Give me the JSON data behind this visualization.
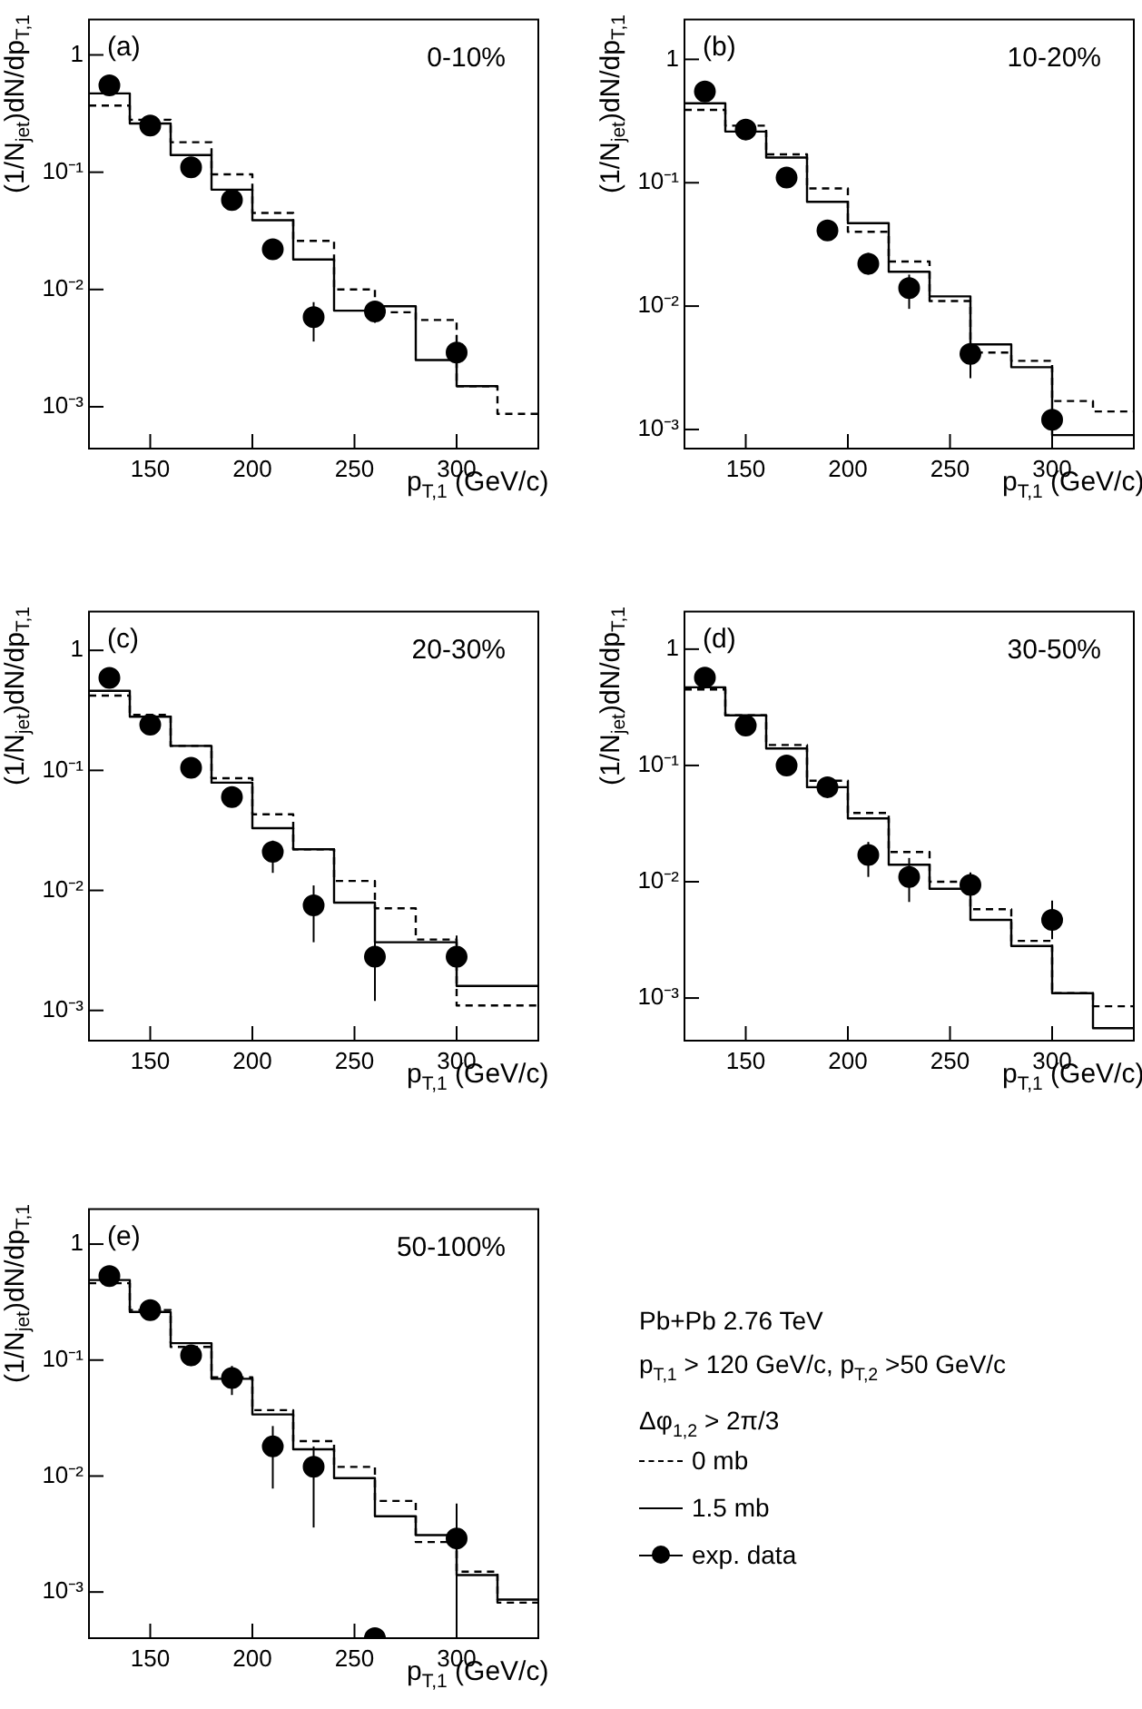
{
  "chart_data": [
    {
      "type": "step",
      "title": "(a)",
      "subtitle": "0-10%",
      "xlabel": "p$_{T,1}$ (GeV/c)",
      "ylabel": "(1/N$_{jet}$)dN/dp$_{T,1}$",
      "log": "y",
      "xlim": [
        120,
        340
      ],
      "xticks": [
        150,
        200,
        250,
        300
      ],
      "ylim": [
        0.00044,
        2
      ],
      "yticks": [
        {
          "value": 0.001,
          "label": "10⁻³"
        },
        {
          "value": 0.01,
          "label": "10⁻²"
        },
        {
          "value": 0.1,
          "label": "10⁻¹"
        },
        {
          "value": 1,
          "label": "1"
        }
      ],
      "series": [
        {
          "color": "#000000",
          "line_style": "dashed",
          "x": [
            120,
            140,
            160,
            180,
            200,
            220,
            240,
            260,
            280,
            300,
            320,
            340
          ],
          "values": [
            0.37,
            0.28,
            0.18,
            0.096,
            0.045,
            0.026,
            0.01,
            0.0064,
            0.0055,
            0.0015,
            0.00087,
            0.00087
          ]
        },
        {
          "color": "#000000",
          "line_style": "solid",
          "x": [
            120,
            140,
            160,
            180,
            200,
            220,
            240,
            260,
            280,
            300,
            320
          ],
          "values": [
            0.47,
            0.26,
            0.14,
            0.071,
            0.039,
            0.018,
            0.0066,
            0.0072,
            0.0025,
            0.0015,
            0.0015
          ]
        },
        {
          "type": "scatter",
          "color": "#000000",
          "marker": "circle",
          "x": [
            130,
            150,
            170,
            190,
            210,
            230,
            260,
            300
          ],
          "values": [
            0.55,
            0.25,
            0.11,
            0.058,
            0.022,
            0.0058,
            0.0065,
            0.0029
          ],
          "errors": [
            null,
            null,
            null,
            null,
            [
              0.019,
              0.026
            ],
            [
              0.0036,
              0.0078
            ],
            [
              0.0052,
              0.0078
            ],
            [
              0.002,
              0.0041
            ]
          ]
        }
      ]
    },
    {
      "type": "step",
      "title": "(b)",
      "subtitle": "10-20%",
      "xlabel": "p$_{T,1}$ (GeV/c)",
      "ylabel": "(1/N$_{jet}$)dN/dp$_{T,1}$",
      "log": "y",
      "xlim": [
        120,
        340
      ],
      "xticks": [
        150,
        200,
        250,
        300
      ],
      "ylim": [
        0.0007,
        2.1
      ],
      "yticks": [
        {
          "value": 0.001,
          "label": "10⁻³"
        },
        {
          "value": 0.01,
          "label": "10⁻²"
        },
        {
          "value": 0.1,
          "label": "10⁻¹"
        },
        {
          "value": 1,
          "label": "1"
        }
      ],
      "series": [
        {
          "color": "#000000",
          "line_style": "dashed",
          "x": [
            120,
            140,
            160,
            180,
            200,
            220,
            240,
            260,
            280,
            300,
            320,
            340
          ],
          "values": [
            0.39,
            0.29,
            0.17,
            0.09,
            0.04,
            0.023,
            0.011,
            0.0042,
            0.0036,
            0.0017,
            0.0014,
            0.0014
          ]
        },
        {
          "color": "#000000",
          "line_style": "solid",
          "x": [
            120,
            140,
            160,
            180,
            200,
            220,
            240,
            260,
            280,
            300,
            320,
            340
          ],
          "values": [
            0.44,
            0.26,
            0.16,
            0.07,
            0.047,
            0.019,
            0.012,
            0.0049,
            0.0032,
            0.0009,
            0.0009,
            0.0009
          ]
        },
        {
          "type": "scatter",
          "color": "#000000",
          "marker": "circle",
          "x": [
            130,
            150,
            170,
            190,
            210,
            230,
            260,
            300
          ],
          "values": [
            0.55,
            0.27,
            0.11,
            0.041,
            0.022,
            0.014,
            0.0041,
            0.0012
          ],
          "errors": [
            null,
            null,
            null,
            null,
            [
              0.018,
              0.027
            ],
            [
              0.0095,
              0.018
            ],
            [
              0.0026,
              0.0053
            ],
            null
          ]
        }
      ]
    },
    {
      "type": "step",
      "title": "(c)",
      "subtitle": "20-30%",
      "xlabel": "p$_{T,1}$ (GeV/c)",
      "ylabel": "(1/N$_{jet}$)dN/dp$_{T,1}$",
      "log": "y",
      "xlim": [
        120,
        340
      ],
      "xticks": [
        150,
        200,
        250,
        300
      ],
      "ylim": [
        0.00056,
        2.1
      ],
      "yticks": [
        {
          "value": 0.001,
          "label": "10⁻³"
        },
        {
          "value": 0.01,
          "label": "10⁻²"
        },
        {
          "value": 0.1,
          "label": "10⁻¹"
        },
        {
          "value": 1,
          "label": "1"
        }
      ],
      "series": [
        {
          "color": "#000000",
          "line_style": "dashed",
          "x": [
            120,
            140,
            160,
            180,
            200,
            220,
            240,
            260,
            280,
            300,
            320,
            340
          ],
          "values": [
            0.42,
            0.29,
            0.16,
            0.086,
            0.043,
            0.022,
            0.012,
            0.0071,
            0.0039,
            0.0011,
            0.0011,
            0.0011
          ]
        },
        {
          "color": "#000000",
          "line_style": "solid",
          "x": [
            120,
            140,
            160,
            180,
            200,
            220,
            240,
            260,
            280,
            300,
            320,
            340
          ],
          "values": [
            0.46,
            0.28,
            0.16,
            0.079,
            0.033,
            0.022,
            0.0079,
            0.0037,
            0.0037,
            0.0016,
            0.0016,
            0.0016
          ]
        },
        {
          "type": "scatter",
          "color": "#000000",
          "marker": "circle",
          "x": [
            130,
            150,
            170,
            190,
            210,
            230,
            260,
            300
          ],
          "values": [
            0.59,
            0.24,
            0.105,
            0.06,
            0.021,
            0.0075,
            0.0028,
            0.0028
          ],
          "errors": [
            null,
            null,
            null,
            null,
            [
              0.014,
              0.026
            ],
            [
              0.0037,
              0.011
            ],
            [
              0.0012,
              0.0049
            ],
            [
              0.0019,
              0.0042
            ]
          ]
        }
      ]
    },
    {
      "type": "step",
      "title": "(d)",
      "subtitle": "30-50%",
      "xlabel": "p$_{T,1}$ (GeV/c)",
      "ylabel": "(1/N$_{jet}$)dN/dp$_{T,1}$",
      "log": "y",
      "xlim": [
        120,
        340
      ],
      "xticks": [
        150,
        200,
        250,
        300
      ],
      "ylim": [
        0.00043,
        2.1
      ],
      "yticks": [
        {
          "value": 0.001,
          "label": "10⁻³"
        },
        {
          "value": 0.01,
          "label": "10⁻²"
        },
        {
          "value": 0.1,
          "label": "10⁻¹"
        },
        {
          "value": 1,
          "label": "1"
        }
      ],
      "series": [
        {
          "color": "#000000",
          "line_style": "dashed",
          "x": [
            120,
            140,
            160,
            180,
            200,
            220,
            240,
            260,
            280,
            300,
            320,
            340
          ],
          "values": [
            0.45,
            0.27,
            0.15,
            0.074,
            0.039,
            0.018,
            0.01,
            0.0058,
            0.0031,
            0.0011,
            0.00085,
            0.00085
          ]
        },
        {
          "color": "#000000",
          "line_style": "solid",
          "x": [
            120,
            140,
            160,
            180,
            200,
            220,
            240,
            260,
            280,
            300,
            320,
            340
          ],
          "values": [
            0.47,
            0.27,
            0.14,
            0.065,
            0.035,
            0.014,
            0.0087,
            0.0047,
            0.0028,
            0.0011,
            0.00055,
            0.00055
          ]
        },
        {
          "type": "scatter",
          "color": "#000000",
          "marker": "circle",
          "x": [
            130,
            150,
            170,
            190,
            210,
            230,
            260,
            300
          ],
          "values": [
            0.57,
            0.22,
            0.1,
            0.065,
            0.017,
            0.011,
            0.0094,
            0.0047
          ],
          "errors": [
            null,
            null,
            null,
            null,
            [
              0.011,
              0.022
            ],
            [
              0.0067,
              0.016
            ],
            [
              0.0075,
              0.012
            ],
            [
              0.0032,
              0.0069
            ]
          ]
        }
      ]
    },
    {
      "type": "step",
      "title": "(e)",
      "subtitle": "50-100%",
      "xlabel": "p$_{T,1}$ (GeV/c)",
      "ylabel": "(1/N$_{jet}$)dN/dp$_{T,1}$",
      "log": "y",
      "legend": "right",
      "annotations": [
        "Pb+Pb 2.76 TeV",
        "p$_{T,1}$ > 120 GeV/c, p$_{T,2}$ >50 GeV/c",
        "Δφ$_{1,2}$ > 2π/3"
      ],
      "xlim": [
        120,
        340
      ],
      "xticks": [
        150,
        200,
        250,
        300
      ],
      "ylim": [
        0.0004,
        2
      ],
      "yticks": [
        {
          "value": 0.001,
          "label": "10⁻³"
        },
        {
          "value": 0.01,
          "label": "10⁻²"
        },
        {
          "value": 0.1,
          "label": "10⁻¹"
        },
        {
          "value": 1,
          "label": "1"
        }
      ],
      "series": [
        {
          "name": "0 mb",
          "color": "#000000",
          "line_style": "dashed",
          "x": [
            120,
            140,
            160,
            180,
            200,
            220,
            240,
            260,
            280,
            300,
            320,
            340
          ],
          "values": [
            0.46,
            0.27,
            0.13,
            0.071,
            0.037,
            0.02,
            0.012,
            0.0061,
            0.0027,
            0.0015,
            0.00081,
            0.00081
          ]
        },
        {
          "name": "1.5 mb",
          "color": "#000000",
          "line_style": "solid",
          "x": [
            120,
            140,
            160,
            180,
            200,
            220,
            240,
            260,
            280,
            300,
            320,
            340
          ],
          "values": [
            0.49,
            0.26,
            0.14,
            0.069,
            0.034,
            0.017,
            0.0096,
            0.0045,
            0.0031,
            0.0014,
            0.00086,
            0.00086
          ]
        },
        {
          "type": "scatter",
          "name": "exp. data",
          "color": "#000000",
          "marker": "circle",
          "x": [
            130,
            150,
            170,
            190,
            210,
            230,
            260,
            300
          ],
          "values": [
            0.53,
            0.27,
            0.11,
            0.07,
            0.018,
            0.012,
            0.0004,
            0.0029
          ],
          "errors": [
            null,
            null,
            [
              0.089,
              0.13
            ],
            [
              0.05,
              0.089
            ],
            [
              0.0078,
              0.027
            ],
            [
              0.0036,
              0.018
            ],
            null,
            [
              0.0004,
              0.0058
            ]
          ]
        }
      ]
    }
  ]
}
